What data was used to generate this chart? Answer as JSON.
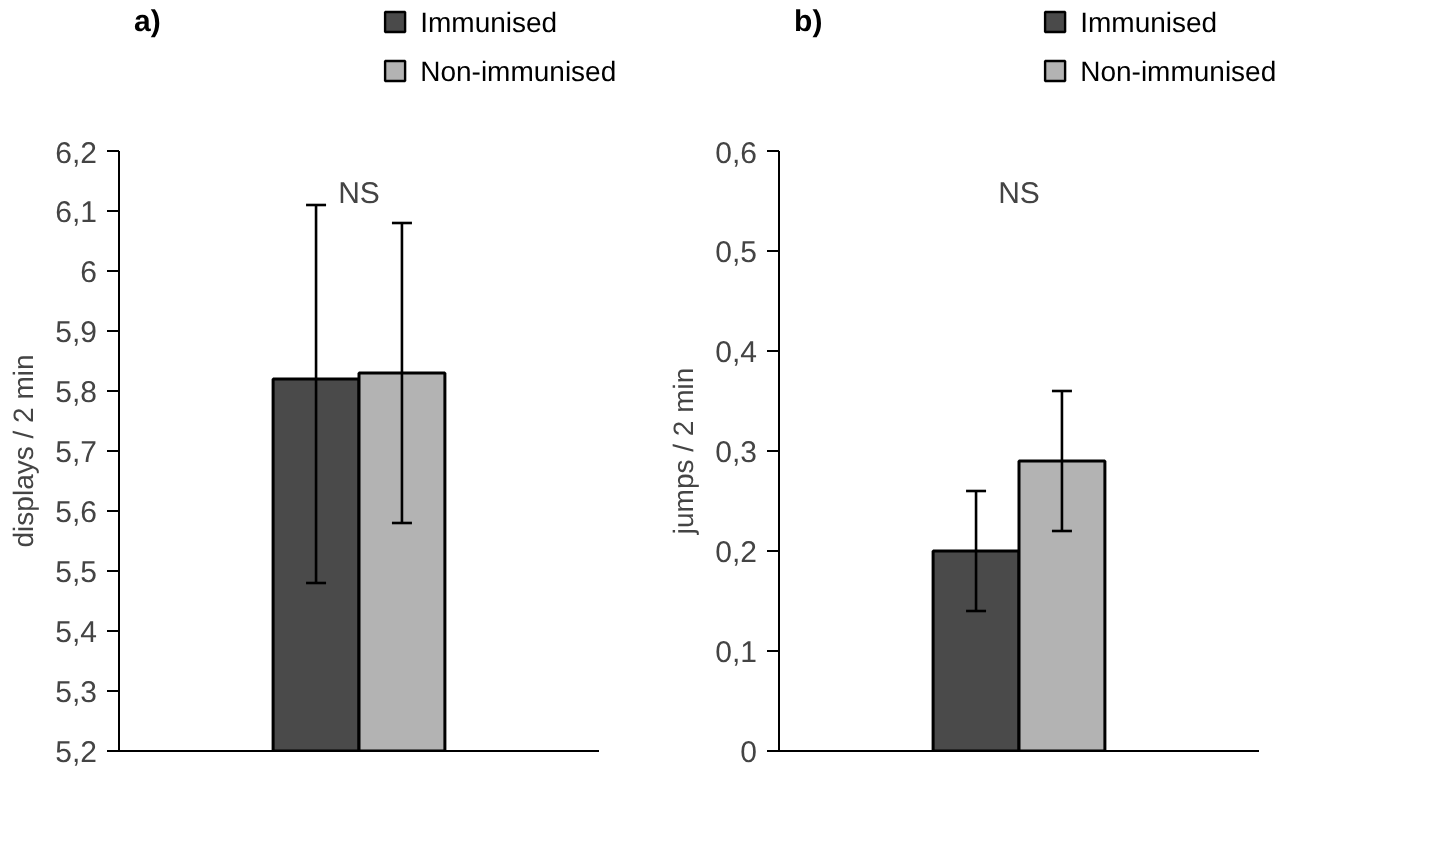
{
  "chart_data": [
    {
      "type": "bar",
      "title": "a)",
      "ylabel": "displays / 2 min",
      "categories": [
        null
      ],
      "series": [
        {
          "name": "Immunised",
          "color": "#4a4a4a",
          "values": [
            5.82
          ],
          "errors": [
            [
              5.48,
              6.11
            ]
          ]
        },
        {
          "name": "Non-immunised",
          "color": "#b3b3b3",
          "values": [
            5.83
          ],
          "errors": [
            [
              5.58,
              6.08
            ]
          ]
        }
      ],
      "ylim": [
        5.2,
        6.2
      ],
      "yticks": [
        {
          "value": 5.2,
          "label": "5,2"
        },
        {
          "value": 5.3,
          "label": "5,3"
        },
        {
          "value": 5.4,
          "label": "5,4"
        },
        {
          "value": 5.5,
          "label": "5,5"
        },
        {
          "value": 5.6,
          "label": "5,6"
        },
        {
          "value": 5.7,
          "label": "5,7"
        },
        {
          "value": 5.8,
          "label": "5,8"
        },
        {
          "value": 5.9,
          "label": "5,9"
        },
        6,
        {
          "value": 6.1,
          "label": "6,1"
        },
        {
          "value": 6.2,
          "label": "6,2"
        }
      ],
      "annotations": [
        "NS"
      ],
      "legend": "top right",
      "grid": false,
      "tick_labels": "y"
    },
    {
      "type": "bar",
      "title": "b)",
      "ylabel": "jumps / 2 min",
      "categories": [
        null
      ],
      "series": [
        {
          "name": "Immunised",
          "color": "#4a4a4a",
          "values": [
            0.2
          ],
          "errors": [
            [
              0.14,
              0.26
            ]
          ]
        },
        {
          "name": "Non-immunised",
          "color": "#b3b3b3",
          "values": [
            0.29
          ],
          "errors": [
            [
              0.22,
              0.36
            ]
          ]
        }
      ],
      "ylim": [
        0,
        0.6
      ],
      "yticks": [
        0,
        {
          "value": 0.1,
          "label": "0,1"
        },
        {
          "value": 0.2,
          "label": "0,2"
        },
        {
          "value": 0.3,
          "label": "0,3"
        },
        {
          "value": 0.4,
          "label": "0,4"
        },
        {
          "value": 0.5,
          "label": "0,5"
        },
        {
          "value": 0.6,
          "label": "0,6"
        }
      ],
      "annotations": [
        "NS"
      ],
      "legend": "top right",
      "grid": false,
      "tick_labels": "y"
    }
  ]
}
